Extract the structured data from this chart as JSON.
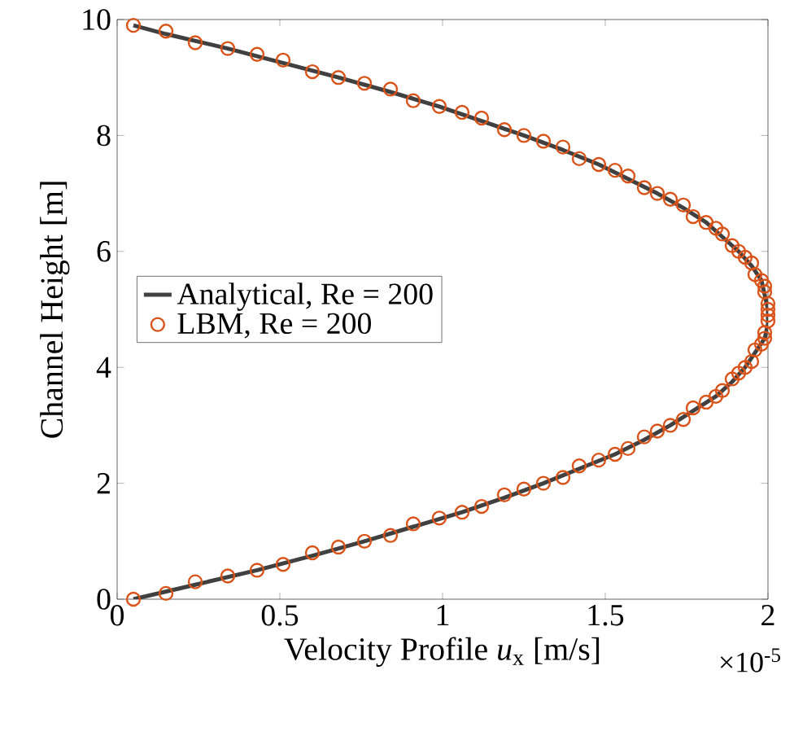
{
  "chart_data": {
    "type": "line",
    "xlabel": "Velocity Profile *u*$_{x}$ [m/s]",
    "ylabel": "Channel Height [m]",
    "annotations": [
      "×10$^{-5}$"
    ],
    "xlim": [
      0,
      2
    ],
    "ylim": [
      0,
      10
    ],
    "xticks": [
      0,
      0.5,
      1,
      1.5,
      2
    ],
    "yticks": [
      0,
      2,
      4,
      6,
      8,
      10
    ],
    "grid": false,
    "legend": "left",
    "series": [
      {
        "name": "Analytical, Re = 200",
        "type": "line",
        "color": "#404040",
        "marker": "none",
        "line_style": "solid",
        "x": [
          0.05,
          0.24,
          0.43,
          0.6,
          0.76,
          0.91,
          1.06,
          1.19,
          1.31,
          1.42,
          1.53,
          1.62,
          1.7,
          1.77,
          1.84,
          1.89,
          1.93,
          1.96,
          1.99,
          2.0,
          2.0,
          1.99,
          1.98,
          1.95,
          1.91,
          1.86,
          1.81,
          1.74,
          1.66,
          1.57,
          1.48,
          1.37,
          1.25,
          1.12,
          0.99,
          0.84,
          0.68,
          0.51,
          0.34,
          0.15,
          0.05
        ],
        "values": [
          0,
          0.25,
          0.5,
          0.75,
          1,
          1.25,
          1.5,
          1.75,
          2,
          2.25,
          2.5,
          2.75,
          3,
          3.25,
          3.5,
          3.75,
          4,
          4.25,
          4.5,
          4.75,
          5,
          5.25,
          5.5,
          5.75,
          6,
          6.25,
          6.5,
          6.75,
          7,
          7.25,
          7.5,
          7.75,
          8,
          8.25,
          8.5,
          8.75,
          9,
          9.25,
          9.5,
          9.75,
          9.9
        ]
      },
      {
        "name": "LBM, Re = 200",
        "type": "scatter",
        "color": "#d95319",
        "marker": "circle",
        "x": [
          0.05,
          0.15,
          0.24,
          0.34,
          0.43,
          0.51,
          0.6,
          0.68,
          0.76,
          0.84,
          0.91,
          0.99,
          1.06,
          1.12,
          1.19,
          1.25,
          1.31,
          1.37,
          1.42,
          1.48,
          1.53,
          1.57,
          1.62,
          1.66,
          1.7,
          1.74,
          1.77,
          1.81,
          1.84,
          1.86,
          1.89,
          1.91,
          1.93,
          1.95,
          1.96,
          1.98,
          1.99,
          1.99,
          2.0,
          2.0,
          2.0,
          2.0,
          1.99,
          1.99,
          1.98,
          1.96,
          1.95,
          1.93,
          1.91,
          1.89,
          1.86,
          1.84,
          1.81,
          1.77,
          1.74,
          1.7,
          1.66,
          1.62,
          1.57,
          1.53,
          1.48,
          1.42,
          1.37,
          1.31,
          1.25,
          1.19,
          1.12,
          1.06,
          0.99,
          0.91,
          0.84,
          0.76,
          0.68,
          0.6,
          0.51,
          0.43,
          0.34,
          0.24,
          0.15,
          0.05
        ],
        "values": [
          0,
          0.1,
          0.3,
          0.4,
          0.5,
          0.6,
          0.8,
          0.9,
          1,
          1.1,
          1.3,
          1.4,
          1.5,
          1.6,
          1.8,
          1.9,
          2,
          2.1,
          2.3,
          2.4,
          2.5,
          2.6,
          2.8,
          2.9,
          3,
          3.1,
          3.3,
          3.4,
          3.5,
          3.6,
          3.8,
          3.9,
          4,
          4.1,
          4.3,
          4.4,
          4.5,
          4.6,
          4.8,
          4.9,
          5,
          5.1,
          5.3,
          5.4,
          5.5,
          5.6,
          5.8,
          5.9,
          6,
          6.1,
          6.3,
          6.4,
          6.5,
          6.6,
          6.8,
          6.9,
          7,
          7.1,
          7.3,
          7.4,
          7.5,
          7.6,
          7.8,
          7.9,
          8,
          8.1,
          8.3,
          8.4,
          8.5,
          8.6,
          8.8,
          8.9,
          9,
          9.1,
          9.3,
          9.4,
          9.5,
          9.6,
          9.8,
          9.9
        ]
      }
    ]
  }
}
